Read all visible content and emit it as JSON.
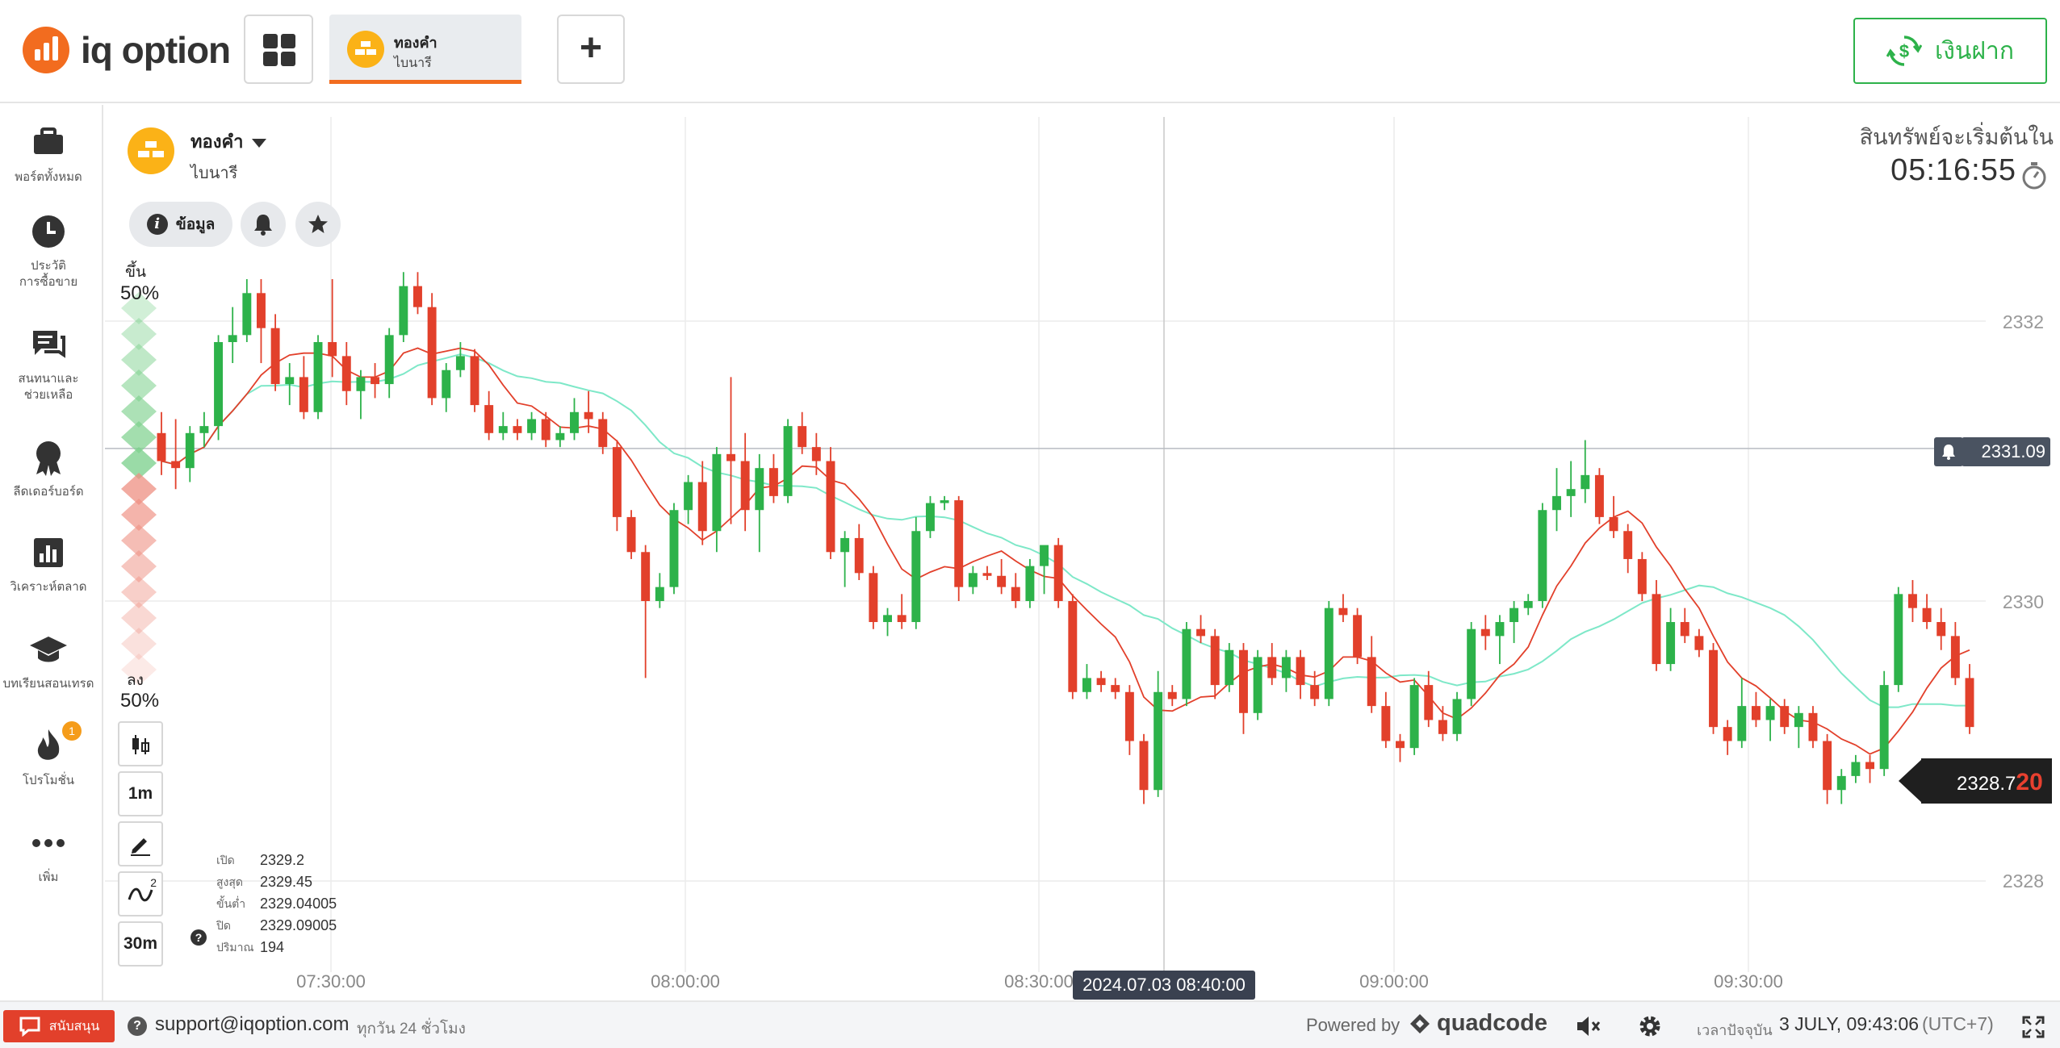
{
  "brand": {
    "name": "iq option",
    "color": "#f26c1f"
  },
  "header": {
    "asset_tab": {
      "name": "ทองคำ",
      "type": "ไบนารี"
    },
    "add_label": "+",
    "deposit_label": "เงินฝาก"
  },
  "sidebar": {
    "items": [
      {
        "label1": "พอร์ตทั้งหมด",
        "label2": "",
        "icon": "briefcase-icon"
      },
      {
        "label1": "ประวัติ",
        "label2": "การซื้อขาย",
        "icon": "clock-icon"
      },
      {
        "label1": "สนทนาและ",
        "label2": "ช่วยเหลือ",
        "icon": "chat-icon"
      },
      {
        "label1": "ลีดเดอร์บอร์ด",
        "label2": "",
        "icon": "medal-icon"
      },
      {
        "label1": "วิเคราะห์ตลาด",
        "label2": "",
        "icon": "analytics-icon"
      },
      {
        "label1": "บทเรียนสอนเทรด",
        "label2": "",
        "icon": "graduation-cap-icon"
      },
      {
        "label1": "โปรโมชั่น",
        "label2": "",
        "icon": "fire-icon",
        "badge": "1"
      },
      {
        "label1": "เพิ่ม",
        "label2": "",
        "icon": "more-dots-icon"
      }
    ]
  },
  "asset": {
    "name": "ทองคำ",
    "type": "ไบนารี",
    "info_label": "ข้อมูล"
  },
  "sentiment": {
    "up_label": "ขึ้น",
    "up_pct": "50%",
    "down_label": "ลง",
    "down_pct": "50%"
  },
  "tools": {
    "candle_type": "candles",
    "timeframe": "1m",
    "indicators_count": "2",
    "chart_period": "30m"
  },
  "ohlc": {
    "open_label": "เปิด",
    "open": "2329.2",
    "high_label": "สูงสุด",
    "high": "2329.45",
    "low_label": "ขั้นต่ำ",
    "low": "2329.04005",
    "close_label": "ปิด",
    "close": "2329.09005",
    "volume_label": "ปริมาณ",
    "volume": "194"
  },
  "expiry": {
    "label": "สินทรัพย์จะเริ่มต้นใน",
    "countdown": "05:16:55"
  },
  "price_axis": {
    "labels": [
      "2332",
      "2330",
      "2328"
    ]
  },
  "alert_line_price": "2331.09",
  "live_price": {
    "main": "2328.7",
    "last_digits": "20"
  },
  "time_axis": {
    "labels": [
      "07:30:00",
      "08:00:00",
      "08:30:00",
      "09:00:00",
      "09:30:00"
    ],
    "crosshair": "2024.07.03 08:40:00"
  },
  "footer": {
    "support_label": "สนับสนุน",
    "support_email": "support@iqoption.com",
    "support_hours": "ทุกวัน 24 ชั่วโมง",
    "powered_by": "Powered by",
    "powered_brand": "quadcode",
    "clock_label": "เวลาปัจจุบัน",
    "clock_value": "3 JULY, 09:43:06",
    "clock_tz": "(UTC+7)"
  },
  "chart_data": {
    "type": "candlestick",
    "y_range": [
      2327.5,
      2332.8
    ],
    "colors": {
      "up": "#2db24a",
      "down": "#e2402b",
      "ma_fast": "#e2402b",
      "ma_slow": "#7ee8c8"
    },
    "candles_ohlc": [
      [
        2331.2,
        2331.35,
        2330.9,
        2331.0
      ],
      [
        2331.0,
        2331.3,
        2330.8,
        2330.95
      ],
      [
        2330.95,
        2331.25,
        2330.85,
        2331.2
      ],
      [
        2331.2,
        2331.35,
        2331.1,
        2331.25
      ],
      [
        2331.25,
        2331.9,
        2331.15,
        2331.85
      ],
      [
        2331.85,
        2332.1,
        2331.7,
        2331.9
      ],
      [
        2331.9,
        2332.3,
        2331.85,
        2332.2
      ],
      [
        2332.2,
        2332.3,
        2331.7,
        2331.95
      ],
      [
        2331.95,
        2332.05,
        2331.5,
        2331.55
      ],
      [
        2331.55,
        2331.7,
        2331.4,
        2331.6
      ],
      [
        2331.6,
        2331.75,
        2331.3,
        2331.35
      ],
      [
        2331.35,
        2331.9,
        2331.3,
        2331.85
      ],
      [
        2331.85,
        2332.3,
        2331.6,
        2331.75
      ],
      [
        2331.75,
        2331.85,
        2331.4,
        2331.5
      ],
      [
        2331.5,
        2331.65,
        2331.3,
        2331.6
      ],
      [
        2331.6,
        2331.7,
        2331.45,
        2331.55
      ],
      [
        2331.55,
        2331.95,
        2331.45,
        2331.9
      ],
      [
        2331.9,
        2332.35,
        2331.85,
        2332.25
      ],
      [
        2332.25,
        2332.35,
        2332.05,
        2332.1
      ],
      [
        2332.1,
        2332.2,
        2331.4,
        2331.45
      ],
      [
        2331.45,
        2331.7,
        2331.35,
        2331.65
      ],
      [
        2331.65,
        2331.85,
        2331.6,
        2331.75
      ],
      [
        2331.75,
        2331.8,
        2331.35,
        2331.4
      ],
      [
        2331.4,
        2331.5,
        2331.15,
        2331.2
      ],
      [
        2331.2,
        2331.35,
        2331.15,
        2331.25
      ],
      [
        2331.25,
        2331.3,
        2331.15,
        2331.2
      ],
      [
        2331.2,
        2331.35,
        2331.15,
        2331.3
      ],
      [
        2331.3,
        2331.35,
        2331.1,
        2331.15
      ],
      [
        2331.15,
        2331.25,
        2331.1,
        2331.2
      ],
      [
        2331.2,
        2331.45,
        2331.15,
        2331.35
      ],
      [
        2331.35,
        2331.5,
        2331.2,
        2331.3
      ],
      [
        2331.3,
        2331.35,
        2331.05,
        2331.1
      ],
      [
        2331.1,
        2331.15,
        2330.5,
        2330.6
      ],
      [
        2330.6,
        2330.65,
        2330.3,
        2330.35
      ],
      [
        2330.35,
        2330.4,
        2329.45,
        2330.0
      ],
      [
        2330.0,
        2330.2,
        2329.95,
        2330.1
      ],
      [
        2330.1,
        2330.7,
        2330.05,
        2330.65
      ],
      [
        2330.65,
        2330.9,
        2330.55,
        2330.85
      ],
      [
        2330.85,
        2331.0,
        2330.4,
        2330.5
      ],
      [
        2330.5,
        2331.1,
        2330.35,
        2331.05
      ],
      [
        2331.05,
        2331.6,
        2330.55,
        2331.0
      ],
      [
        2331.0,
        2331.2,
        2330.5,
        2330.65
      ],
      [
        2330.65,
        2331.05,
        2330.35,
        2330.95
      ],
      [
        2330.95,
        2331.05,
        2330.7,
        2330.75
      ],
      [
        2330.75,
        2331.3,
        2330.7,
        2331.25
      ],
      [
        2331.25,
        2331.35,
        2331.05,
        2331.1
      ],
      [
        2331.1,
        2331.2,
        2330.9,
        2331.0
      ],
      [
        2331.0,
        2331.1,
        2330.3,
        2330.35
      ],
      [
        2330.35,
        2330.5,
        2330.1,
        2330.45
      ],
      [
        2330.45,
        2330.55,
        2330.15,
        2330.2
      ],
      [
        2330.2,
        2330.25,
        2329.8,
        2329.85
      ],
      [
        2329.85,
        2329.95,
        2329.75,
        2329.9
      ],
      [
        2329.9,
        2330.05,
        2329.8,
        2329.85
      ],
      [
        2329.85,
        2330.6,
        2329.8,
        2330.5
      ],
      [
        2330.5,
        2330.75,
        2330.45,
        2330.7
      ],
      [
        2330.7,
        2330.75,
        2330.65,
        2330.72
      ],
      [
        2330.72,
        2330.75,
        2330.0,
        2330.1
      ],
      [
        2330.1,
        2330.25,
        2330.05,
        2330.2
      ],
      [
        2330.2,
        2330.25,
        2330.15,
        2330.18
      ],
      [
        2330.18,
        2330.3,
        2330.05,
        2330.1
      ],
      [
        2330.1,
        2330.2,
        2329.95,
        2330.0
      ],
      [
        2330.0,
        2330.3,
        2329.95,
        2330.25
      ],
      [
        2330.25,
        2330.35,
        2330.05,
        2330.4
      ],
      [
        2330.4,
        2330.45,
        2329.95,
        2330.0
      ],
      [
        2330.0,
        2330.05,
        2329.3,
        2329.35
      ],
      [
        2329.35,
        2329.55,
        2329.3,
        2329.45
      ],
      [
        2329.45,
        2329.5,
        2329.35,
        2329.4
      ],
      [
        2329.4,
        2329.45,
        2329.3,
        2329.35
      ],
      [
        2329.35,
        2329.4,
        2328.9,
        2329.0
      ],
      [
        2329.0,
        2329.05,
        2328.55,
        2328.65
      ],
      [
        2328.65,
        2329.5,
        2328.6,
        2329.35
      ],
      [
        2329.35,
        2329.4,
        2329.25,
        2329.3
      ],
      [
        2329.3,
        2329.85,
        2329.25,
        2329.8
      ],
      [
        2329.8,
        2329.9,
        2329.7,
        2329.75
      ],
      [
        2329.75,
        2329.8,
        2329.3,
        2329.4
      ],
      [
        2329.4,
        2329.7,
        2329.35,
        2329.65
      ],
      [
        2329.65,
        2329.7,
        2329.05,
        2329.2
      ],
      [
        2329.2,
        2329.65,
        2329.15,
        2329.6
      ],
      [
        2329.6,
        2329.7,
        2329.4,
        2329.45
      ],
      [
        2329.45,
        2329.65,
        2329.35,
        2329.6
      ],
      [
        2329.6,
        2329.65,
        2329.3,
        2329.4
      ],
      [
        2329.4,
        2329.5,
        2329.25,
        2329.3
      ],
      [
        2329.3,
        2330.0,
        2329.25,
        2329.95
      ],
      [
        2329.95,
        2330.05,
        2329.85,
        2329.9
      ],
      [
        2329.9,
        2329.95,
        2329.55,
        2329.6
      ],
      [
        2329.6,
        2329.75,
        2329.2,
        2329.25
      ],
      [
        2329.25,
        2329.35,
        2328.95,
        2329.0
      ],
      [
        2329.0,
        2329.05,
        2328.85,
        2328.95
      ],
      [
        2328.95,
        2329.45,
        2328.9,
        2329.4
      ],
      [
        2329.4,
        2329.5,
        2329.1,
        2329.15
      ],
      [
        2329.15,
        2329.25,
        2329.0,
        2329.05
      ],
      [
        2329.05,
        2329.35,
        2329.0,
        2329.3
      ],
      [
        2329.3,
        2329.85,
        2329.25,
        2329.8
      ],
      [
        2329.8,
        2329.9,
        2329.65,
        2329.75
      ],
      [
        2329.75,
        2329.9,
        2329.55,
        2329.85
      ],
      [
        2329.85,
        2330.0,
        2329.7,
        2329.95
      ],
      [
        2329.95,
        2330.05,
        2329.9,
        2330.0
      ],
      [
        2330.0,
        2330.7,
        2329.95,
        2330.65
      ],
      [
        2330.65,
        2330.95,
        2330.5,
        2330.75
      ],
      [
        2330.75,
        2331.0,
        2330.6,
        2330.8
      ],
      [
        2330.8,
        2331.15,
        2330.7,
        2330.9
      ],
      [
        2330.9,
        2330.95,
        2330.55,
        2330.6
      ],
      [
        2330.6,
        2330.75,
        2330.45,
        2330.5
      ],
      [
        2330.5,
        2330.55,
        2330.2,
        2330.3
      ],
      [
        2330.3,
        2330.35,
        2330.0,
        2330.05
      ],
      [
        2330.05,
        2330.15,
        2329.5,
        2329.55
      ],
      [
        2329.55,
        2329.95,
        2329.5,
        2329.85
      ],
      [
        2329.85,
        2329.95,
        2329.7,
        2329.75
      ],
      [
        2329.75,
        2329.8,
        2329.6,
        2329.65
      ],
      [
        2329.65,
        2329.7,
        2329.05,
        2329.1
      ],
      [
        2329.1,
        2329.15,
        2328.9,
        2329.0
      ],
      [
        2329.0,
        2329.45,
        2328.95,
        2329.25
      ],
      [
        2329.25,
        2329.35,
        2329.1,
        2329.15
      ],
      [
        2329.15,
        2329.3,
        2329.0,
        2329.25
      ],
      [
        2329.25,
        2329.3,
        2329.05,
        2329.1
      ],
      [
        2329.1,
        2329.25,
        2328.95,
        2329.2
      ],
      [
        2329.2,
        2329.25,
        2328.95,
        2329.0
      ],
      [
        2329.0,
        2329.05,
        2328.55,
        2328.65
      ],
      [
        2328.65,
        2328.8,
        2328.55,
        2328.75
      ],
      [
        2328.75,
        2328.9,
        2328.7,
        2328.85
      ],
      [
        2328.85,
        2328.9,
        2328.7,
        2328.8
      ],
      [
        2328.8,
        2329.5,
        2328.75,
        2329.4
      ],
      [
        2329.4,
        2330.1,
        2329.35,
        2330.05
      ],
      [
        2330.05,
        2330.15,
        2329.85,
        2329.95
      ],
      [
        2329.95,
        2330.05,
        2329.8,
        2329.85
      ],
      [
        2329.85,
        2329.95,
        2329.65,
        2329.75
      ],
      [
        2329.75,
        2329.85,
        2329.4,
        2329.45
      ],
      [
        2329.45,
        2329.55,
        2329.05,
        2329.1
      ]
    ]
  }
}
